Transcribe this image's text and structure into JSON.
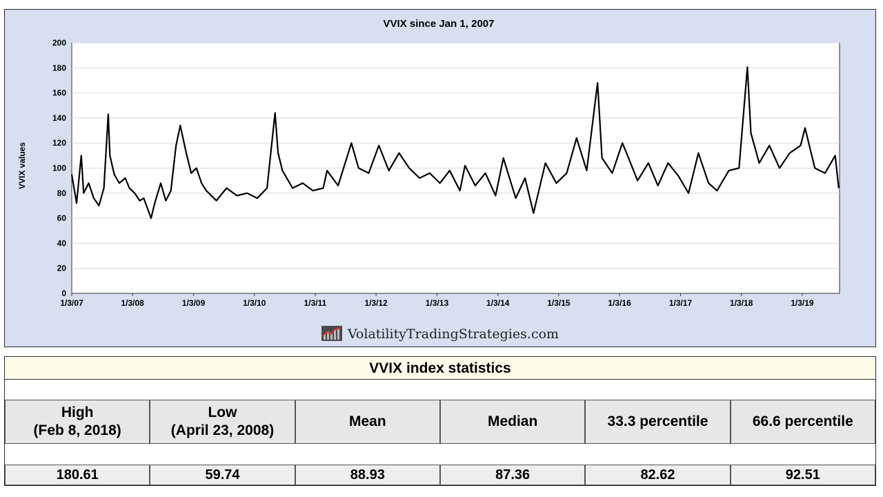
{
  "chart_data": {
    "type": "line",
    "title": "VVIX since Jan 1, 2007",
    "ylabel": "VVIX values",
    "xlabel": "",
    "ylim": [
      0,
      200
    ],
    "yticks": [
      0,
      20,
      40,
      60,
      80,
      100,
      120,
      140,
      160,
      180,
      200
    ],
    "xlim": [
      "2007-01-03",
      "2019-08-15"
    ],
    "xticks": [
      {
        "date": "2007-01-03",
        "label": "1/3/07"
      },
      {
        "date": "2008-01-03",
        "label": "1/3/08"
      },
      {
        "date": "2009-01-03",
        "label": "1/3/09"
      },
      {
        "date": "2010-01-03",
        "label": "1/3/10"
      },
      {
        "date": "2011-01-03",
        "label": "1/3/11"
      },
      {
        "date": "2012-01-03",
        "label": "1/3/12"
      },
      {
        "date": "2013-01-03",
        "label": "1/3/13"
      },
      {
        "date": "2014-01-03",
        "label": "1/3/14"
      },
      {
        "date": "2015-01-03",
        "label": "1/3/15"
      },
      {
        "date": "2016-01-03",
        "label": "1/3/16"
      },
      {
        "date": "2017-01-03",
        "label": "1/3/17"
      },
      {
        "date": "2018-01-03",
        "label": "1/3/18"
      },
      {
        "date": "2019-01-03",
        "label": "1/3/19"
      }
    ],
    "grid": true,
    "series": [
      {
        "x": [
          "2007-01-03",
          "2007-02-01",
          "2007-03-01",
          "2007-03-15",
          "2007-04-15",
          "2007-05-15",
          "2007-06-15",
          "2007-07-15",
          "2007-08-10",
          "2007-08-20",
          "2007-09-15",
          "2007-10-15",
          "2007-11-20",
          "2007-12-15",
          "2008-01-15",
          "2008-02-15",
          "2008-03-10",
          "2008-04-23",
          "2008-05-15",
          "2008-06-20",
          "2008-07-20",
          "2008-08-20",
          "2008-09-20",
          "2008-10-15",
          "2008-11-20",
          "2008-12-20",
          "2009-01-20",
          "2009-02-20",
          "2009-03-20",
          "2009-05-20",
          "2009-07-20",
          "2009-09-20",
          "2009-11-20",
          "2010-01-20",
          "2010-03-20",
          "2010-05-07",
          "2010-05-25",
          "2010-06-20",
          "2010-08-20",
          "2010-10-20",
          "2010-12-20",
          "2011-02-20",
          "2011-03-15",
          "2011-05-20",
          "2011-08-08",
          "2011-09-20",
          "2011-11-20",
          "2012-01-20",
          "2012-03-20",
          "2012-05-20",
          "2012-07-20",
          "2012-09-20",
          "2012-11-20",
          "2013-01-20",
          "2013-03-20",
          "2013-05-20",
          "2013-06-20",
          "2013-08-20",
          "2013-10-20",
          "2013-12-20",
          "2014-02-05",
          "2014-04-20",
          "2014-06-15",
          "2014-08-05",
          "2014-10-15",
          "2014-12-20",
          "2015-02-20",
          "2015-04-20",
          "2015-06-20",
          "2015-08-24",
          "2015-09-20",
          "2015-11-20",
          "2016-01-20",
          "2016-02-20",
          "2016-04-20",
          "2016-06-24",
          "2016-08-20",
          "2016-10-20",
          "2016-12-20",
          "2017-02-20",
          "2017-04-20",
          "2017-06-20",
          "2017-08-10",
          "2017-10-20",
          "2017-12-20",
          "2018-02-08",
          "2018-03-01",
          "2018-04-20",
          "2018-06-20",
          "2018-08-20",
          "2018-10-20",
          "2018-12-24",
          "2019-01-20",
          "2019-03-20",
          "2019-05-20",
          "2019-07-20",
          "2019-08-10"
        ],
        "y": [
          95,
          72,
          110,
          80,
          88,
          76,
          70,
          84,
          143,
          110,
          95,
          88,
          92,
          84,
          80,
          74,
          76,
          60,
          72,
          88,
          74,
          82,
          118,
          134,
          112,
          96,
          100,
          88,
          82,
          74,
          84,
          78,
          80,
          76,
          84,
          144,
          112,
          98,
          84,
          88,
          82,
          84,
          98,
          86,
          120,
          100,
          96,
          118,
          98,
          112,
          100,
          92,
          96,
          88,
          98,
          82,
          102,
          86,
          96,
          78,
          108,
          76,
          92,
          64,
          104,
          88,
          96,
          124,
          98,
          168,
          108,
          96,
          120,
          110,
          90,
          104,
          86,
          104,
          94,
          80,
          112,
          88,
          82,
          98,
          100,
          180.61,
          128,
          104,
          118,
          100,
          112,
          118,
          132,
          100,
          96,
          110,
          84
        ]
      }
    ]
  },
  "watermark": "VolatilityTradingStrategies.com",
  "stats": {
    "title": "VVIX index statistics",
    "headers": [
      {
        "line1": "High",
        "line2": "(Feb 8, 2018)"
      },
      {
        "line1": "Low",
        "line2": "(April 23, 2008)"
      },
      {
        "line1": "Mean",
        "line2": ""
      },
      {
        "line1": "Median",
        "line2": ""
      },
      {
        "line1": "33.3 percentile",
        "line2": ""
      },
      {
        "line1": "66.6 percentile",
        "line2": ""
      }
    ],
    "values": [
      "180.61",
      "59.74",
      "88.93",
      "87.36",
      "82.62",
      "92.51"
    ]
  }
}
